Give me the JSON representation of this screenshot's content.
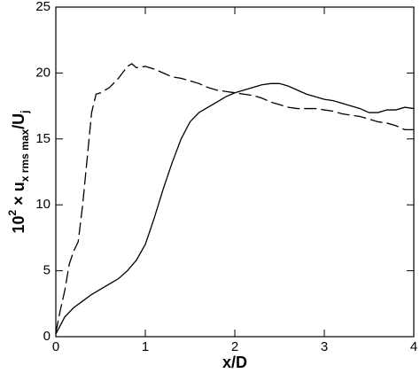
{
  "chart_data": {
    "type": "line",
    "x_label": "x/D",
    "y_label": [
      {
        "text": "10"
      },
      {
        "text": "2",
        "position": "super"
      },
      {
        "text": " × u"
      },
      {
        "text": "x rms max",
        "position": "sub"
      },
      {
        "text": "/U"
      },
      {
        "text": "j",
        "position": "sub"
      }
    ],
    "xlim": [
      0,
      4
    ],
    "xticks": [
      0,
      1,
      2,
      3,
      4
    ],
    "ylim": [
      0,
      25
    ],
    "yticks": [
      0,
      5,
      10,
      15,
      20,
      25
    ],
    "series": [
      {
        "color": "#000000",
        "line_style": "solid",
        "x": [
          0,
          0.1,
          0.2,
          0.3,
          0.4,
          0.5,
          0.6,
          0.7,
          0.8,
          0.9,
          1.0,
          1.1,
          1.2,
          1.3,
          1.4,
          1.5,
          1.6,
          1.7,
          1.8,
          1.9,
          2.0,
          2.1,
          2.2,
          2.3,
          2.4,
          2.5,
          2.6,
          2.7,
          2.8,
          2.9,
          3.0,
          3.1,
          3.2,
          3.3,
          3.4,
          3.5,
          3.6,
          3.7,
          3.8,
          3.9,
          4.0
        ],
        "values": [
          0.2,
          1.5,
          2.2,
          2.7,
          3.2,
          3.6,
          4.0,
          4.4,
          5.0,
          5.8,
          7.0,
          9.0,
          11.2,
          13.2,
          15.0,
          16.3,
          17.0,
          17.4,
          17.8,
          18.2,
          18.5,
          18.7,
          18.9,
          19.1,
          19.2,
          19.2,
          19.0,
          18.7,
          18.4,
          18.2,
          18.0,
          17.9,
          17.7,
          17.5,
          17.3,
          17.0,
          17.0,
          17.2,
          17.2,
          17.4,
          17.3
        ]
      },
      {
        "color": "#000000",
        "line_style": "dashed",
        "x": [
          0,
          0.05,
          0.1,
          0.15,
          0.2,
          0.25,
          0.3,
          0.35,
          0.4,
          0.45,
          0.5,
          0.6,
          0.7,
          0.8,
          0.85,
          0.9,
          1.0,
          1.1,
          1.2,
          1.3,
          1.4,
          1.5,
          1.6,
          1.7,
          1.8,
          1.9,
          2.0,
          2.1,
          2.2,
          2.3,
          2.4,
          2.5,
          2.6,
          2.7,
          2.8,
          2.9,
          3.0,
          3.1,
          3.2,
          3.3,
          3.4,
          3.5,
          3.6,
          3.7,
          3.8,
          3.9,
          4.0
        ],
        "values": [
          0.3,
          2.0,
          3.5,
          5.5,
          6.5,
          7.2,
          10.0,
          13.5,
          17.0,
          18.4,
          18.5,
          18.9,
          19.6,
          20.5,
          20.7,
          20.4,
          20.5,
          20.3,
          20.0,
          19.7,
          19.6,
          19.4,
          19.2,
          18.9,
          18.7,
          18.6,
          18.5,
          18.4,
          18.3,
          18.1,
          17.8,
          17.6,
          17.4,
          17.3,
          17.3,
          17.3,
          17.2,
          17.1,
          16.9,
          16.8,
          16.7,
          16.5,
          16.3,
          16.2,
          16.0,
          15.7,
          15.7
        ]
      }
    ]
  }
}
